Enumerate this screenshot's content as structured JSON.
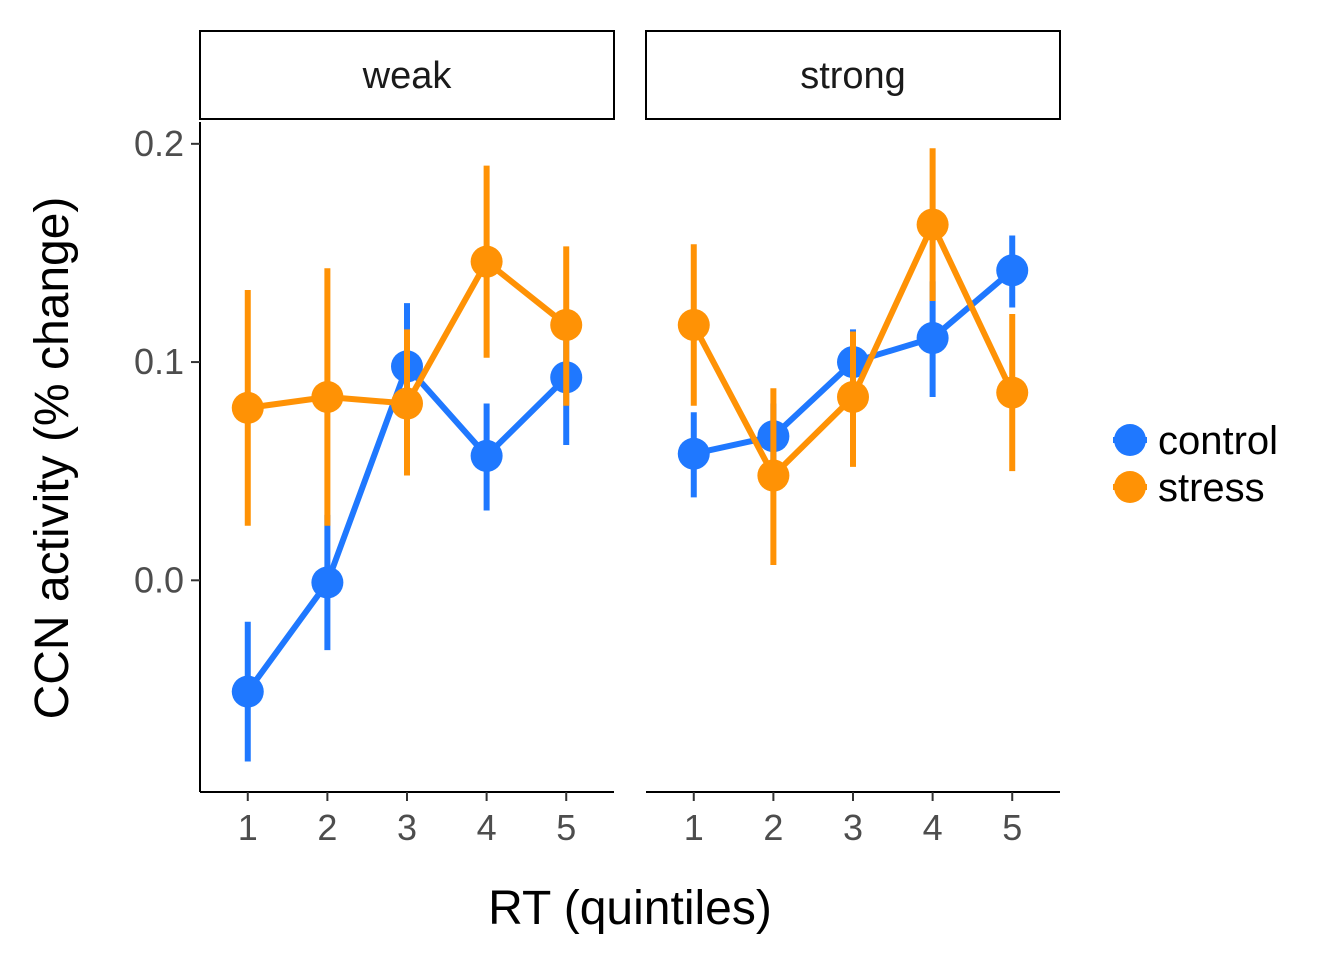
{
  "chart_data": {
    "type": "line",
    "xlabel": "RT (quintiles)",
    "ylabel": "CCN activity (% change)",
    "x_categories": [
      "1",
      "2",
      "3",
      "4",
      "5"
    ],
    "y_ticks": [
      "0.0",
      "0.1",
      "0.2"
    ],
    "ylim": [
      -0.097,
      0.21
    ],
    "legend_position": "right",
    "facets": [
      {
        "label": "weak",
        "series": [
          {
            "name": "control",
            "color": "#1f78ff",
            "y": [
              -0.051,
              -0.001,
              0.098,
              0.057,
              0.093
            ],
            "ymin": [
              -0.083,
              -0.032,
              0.069,
              0.032,
              0.062
            ],
            "ymax": [
              -0.019,
              0.03,
              0.127,
              0.081,
              0.115
            ]
          },
          {
            "name": "stress",
            "color": "#ff9205",
            "y": [
              0.079,
              0.084,
              0.081,
              0.146,
              0.117
            ],
            "ymin": [
              0.025,
              0.025,
              0.048,
              0.102,
              0.08
            ],
            "ymax": [
              0.133,
              0.143,
              0.115,
              0.19,
              0.153
            ]
          }
        ]
      },
      {
        "label": "strong",
        "series": [
          {
            "name": "control",
            "color": "#1f78ff",
            "y": [
              0.058,
              0.066,
              0.1,
              0.111,
              0.142
            ],
            "ymin": [
              0.038,
              0.048,
              0.083,
              0.084,
              0.125
            ],
            "ymax": [
              0.077,
              0.081,
              0.115,
              0.137,
              0.158
            ]
          },
          {
            "name": "stress",
            "color": "#ff9205",
            "y": [
              0.117,
              0.048,
              0.084,
              0.163,
              0.086
            ],
            "ymin": [
              0.08,
              0.007,
              0.052,
              0.128,
              0.05
            ],
            "ymax": [
              0.154,
              0.088,
              0.114,
              0.198,
              0.122
            ]
          }
        ]
      }
    ],
    "legend": [
      {
        "name": "control",
        "color": "#1f78ff"
      },
      {
        "name": "stress",
        "color": "#ff9205"
      }
    ]
  }
}
